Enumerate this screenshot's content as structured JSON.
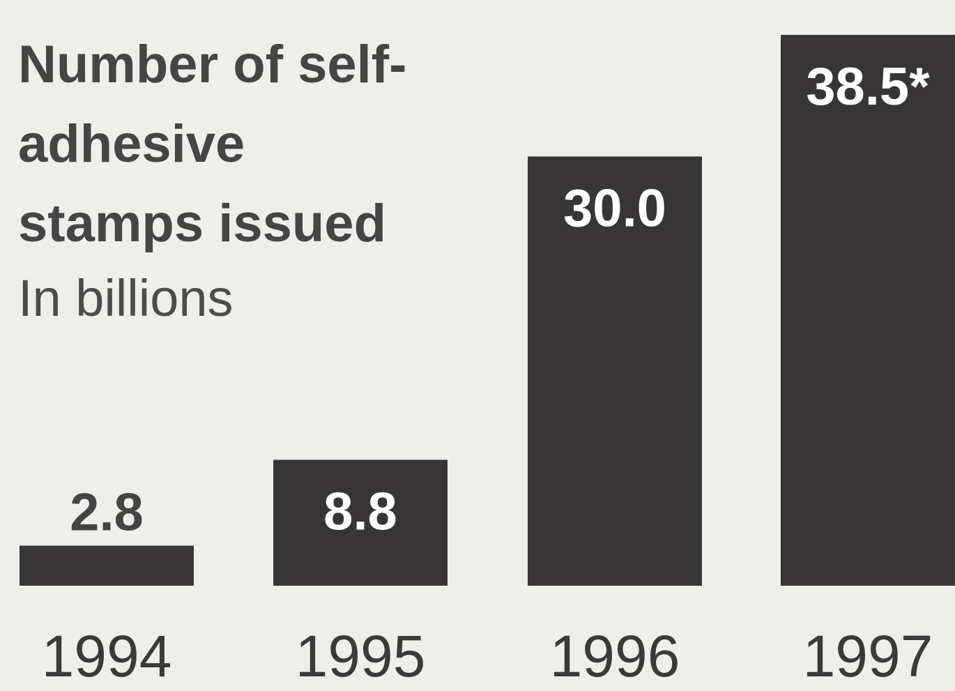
{
  "chart_data": {
    "type": "bar",
    "title_lines": [
      "Number of self-",
      "adhesive",
      "stamps issued"
    ],
    "subtitle": "In billions",
    "categories": [
      "1994",
      "1995",
      "1996",
      "1997"
    ],
    "values": [
      2.8,
      8.8,
      30.0,
      38.5
    ],
    "data_labels": [
      "2.8",
      "8.8",
      "30.0",
      "38.5*"
    ],
    "ylim": [
      0,
      38.5
    ],
    "grid": false,
    "bar_color": "#373536",
    "background_color": "#eeeeeb"
  }
}
